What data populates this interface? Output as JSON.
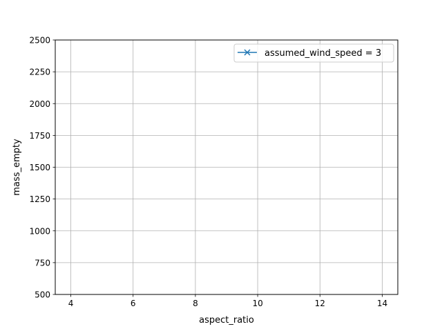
{
  "chart_data": {
    "type": "line",
    "title": "",
    "xlabel": "aspect_ratio",
    "ylabel": "mass_empty",
    "xlim": [
      3.5,
      14.5
    ],
    "ylim": [
      500,
      2500
    ],
    "x_ticks": [
      4,
      6,
      8,
      10,
      12,
      14
    ],
    "y_ticks": [
      500,
      750,
      1000,
      1250,
      1500,
      1750,
      2000,
      2250,
      2500
    ],
    "grid": true,
    "legend_position": "upper right",
    "series": [
      {
        "name": "assumed_wind_speed = 3",
        "color": "#1f77b4",
        "marker": "x",
        "x": [],
        "y": []
      }
    ]
  }
}
